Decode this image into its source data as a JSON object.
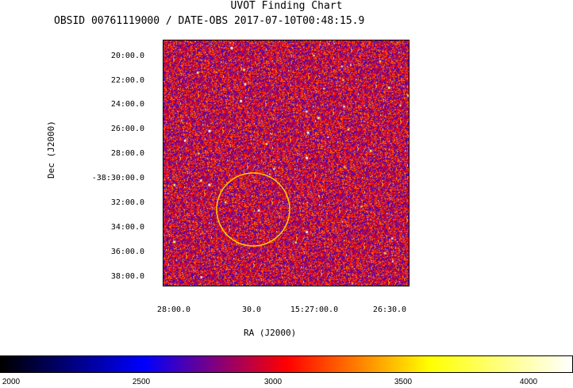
{
  "header": {
    "title": "UVOT Finding Chart",
    "subtitle": "OBSID 00761119000 / DATE-OBS 2017-07-10T00:48:15.9"
  },
  "chart_data": {
    "type": "heatmap",
    "title": "UVOT Finding Chart",
    "subtitle": "OBSID 00761119000 / DATE-OBS 2017-07-10T00:48:15.9",
    "xlabel": "RA (J2000)",
    "ylabel": "Dec (J2000)",
    "x_ticks": [
      "28:00.0",
      "30.0",
      "15:27:00.0",
      "26:30.0"
    ],
    "y_ticks": [
      "20:00.0",
      "22:00.0",
      "24:00.0",
      "26:00.0",
      "28:00.0",
      "-38:30:00.0",
      "32:00.0",
      "34:00.0",
      "36:00.0",
      "38:00.0"
    ],
    "source_circle": {
      "color": "#ffcc00"
    },
    "colorbar": {
      "range": [
        2000,
        4200
      ],
      "ticks": [
        "2000",
        "2500",
        "3000",
        "3500",
        "4000"
      ],
      "colormap": [
        "#000000",
        "#0000ff",
        "#ff0000",
        "#ffff00",
        "#ffffff"
      ]
    },
    "grid": false
  }
}
